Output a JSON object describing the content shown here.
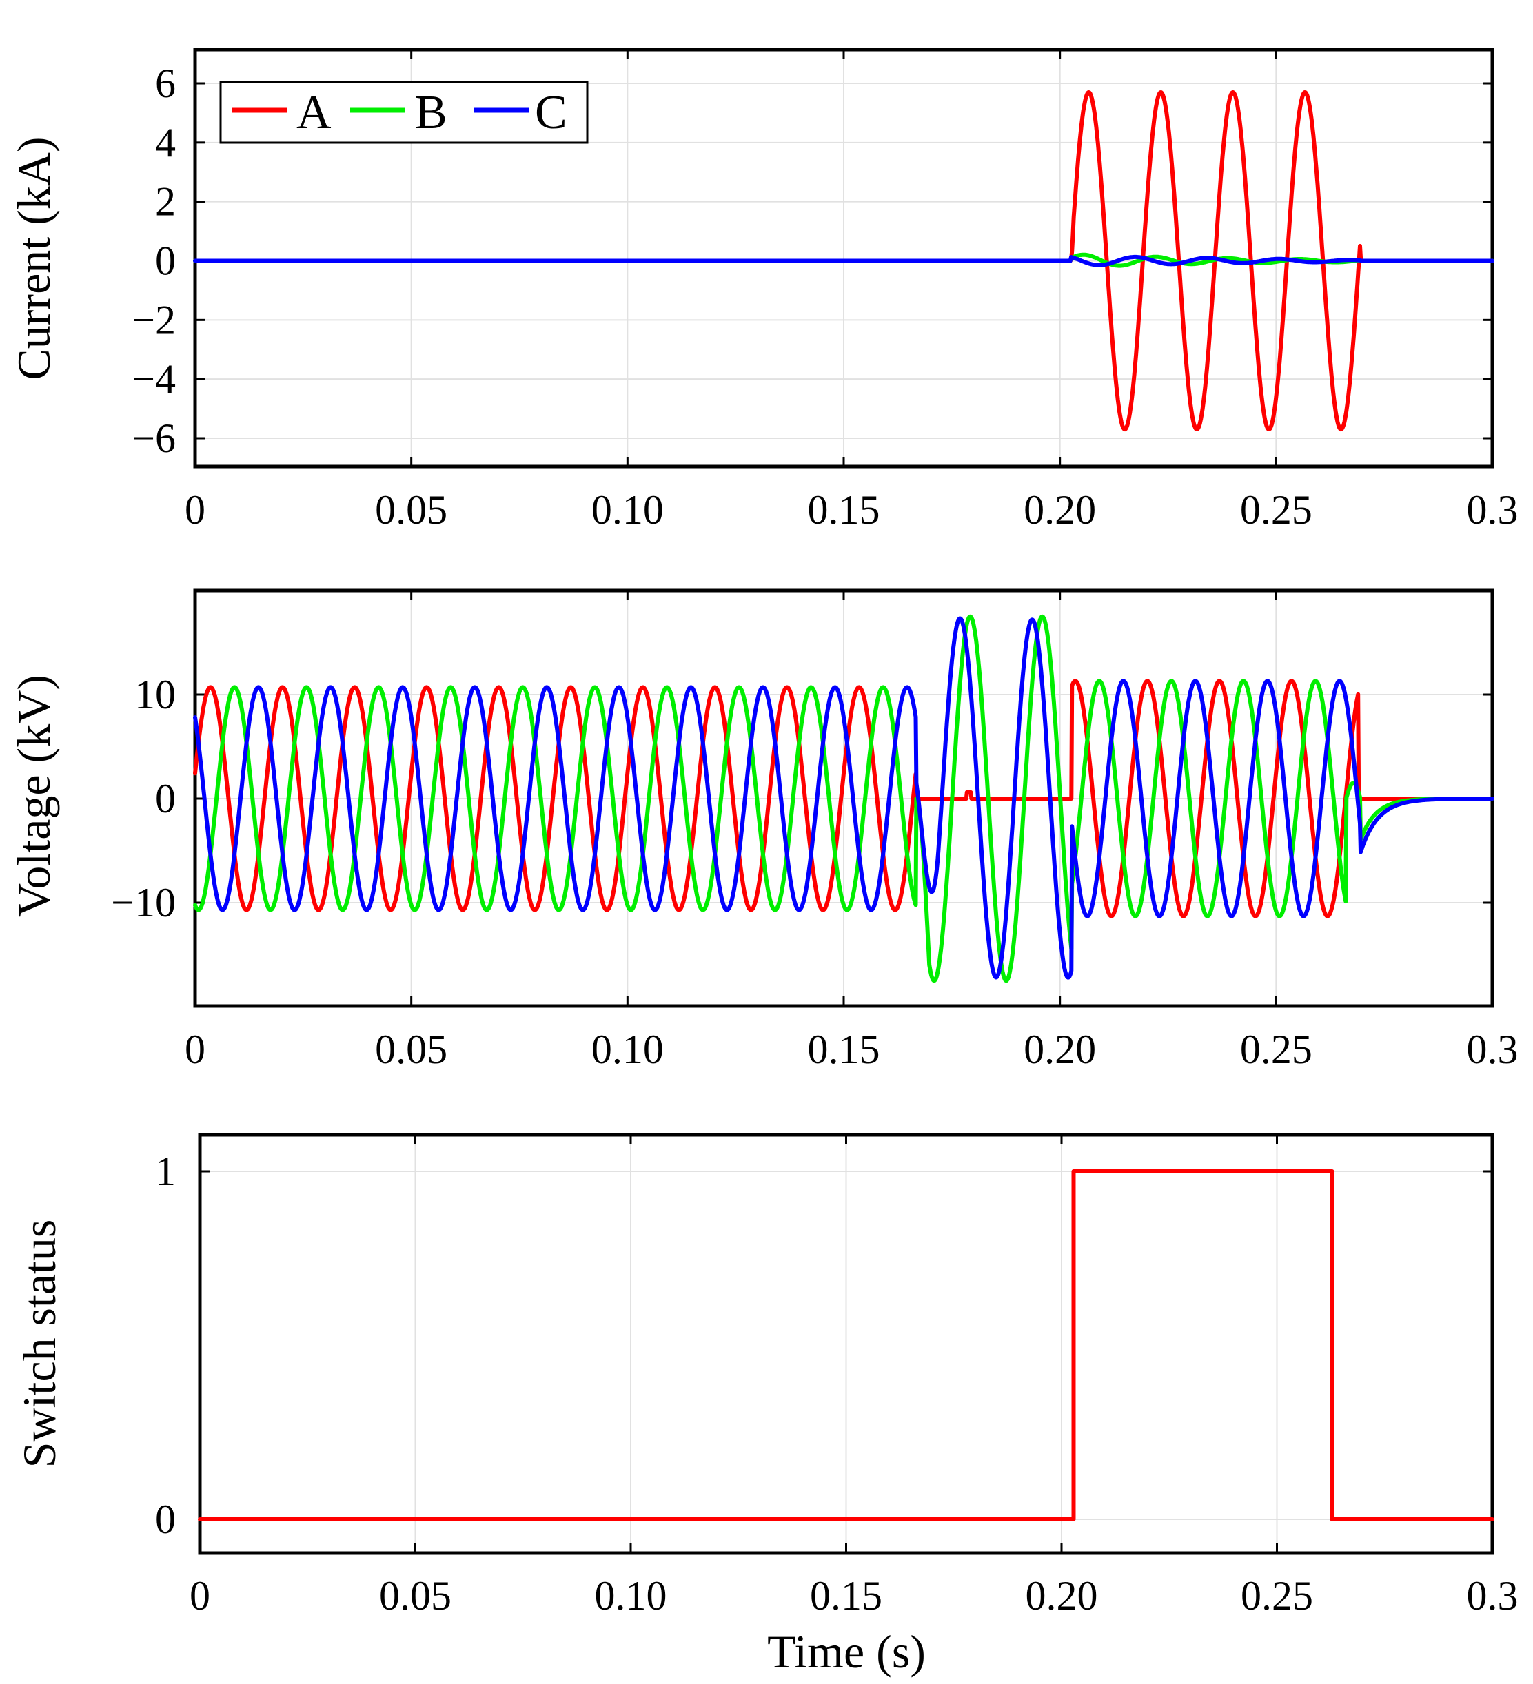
{
  "colors": {
    "A": "#ff0000",
    "B": "#00ee00",
    "C": "#0000ff"
  },
  "chart_data": [
    {
      "type": "line",
      "title": "",
      "xlabel": "",
      "ylabel": "Current (kA)",
      "xlim": [
        0,
        0.3
      ],
      "ylim": [
        -7,
        7
      ],
      "xticks": [
        0,
        0.05,
        0.1,
        0.15,
        0.2,
        0.25,
        0.3
      ],
      "xtick_labels": [
        "0",
        "0.05",
        "0.10",
        "0.15",
        "0.20",
        "0.25",
        "0.3"
      ],
      "yticks": [
        6,
        4,
        2,
        0,
        -2,
        -4,
        -6
      ],
      "ytick_labels": [
        "6",
        "4",
        "2",
        "0",
        "−2",
        "−4",
        "−6"
      ],
      "legend": {
        "position": "top-left",
        "entries": [
          "A",
          "B",
          "C"
        ]
      },
      "series": [
        {
          "name": "A",
          "color": "#ff0000",
          "description": "0 until t=0.203 s, then sinusoid ~5.7 kA peak at 60 Hz until t=0.27 s, then 0",
          "x": [
            0,
            0.2025,
            0.2071,
            0.2154,
            0.2236,
            0.2319,
            0.2401,
            0.2484,
            0.2567,
            0.2649,
            0.2695,
            0.3
          ],
          "y": [
            0,
            0,
            5.8,
            -5.5,
            5.5,
            -5.7,
            5.6,
            -5.7,
            5.6,
            -5.7,
            0,
            0
          ]
        },
        {
          "name": "B",
          "color": "#00ee00",
          "description": "small oscillation (~0.25 kA) during fault",
          "x": [
            0,
            0.2025,
            0.2071,
            0.2154,
            0.2236,
            0.2319,
            0.2401,
            0.2484,
            0.2567,
            0.2649,
            0.2695,
            0.3
          ],
          "y": [
            0,
            0,
            0.25,
            -0.22,
            0.2,
            -0.15,
            0.12,
            -0.1,
            0.08,
            -0.06,
            0,
            0
          ]
        },
        {
          "name": "C",
          "color": "#0000ff",
          "description": "small oscillation (~0.2 kA) during fault",
          "x": [
            0,
            0.2025,
            0.2071,
            0.2154,
            0.2236,
            0.2319,
            0.2401,
            0.2484,
            0.2567,
            0.2649,
            0.2695,
            0.3
          ],
          "y": [
            0,
            0,
            0.15,
            -0.12,
            0.18,
            -0.15,
            0.12,
            -0.1,
            0.12,
            -0.06,
            0,
            0
          ]
        }
      ]
    },
    {
      "type": "line",
      "title": "",
      "xlabel": "",
      "ylabel": "Voltage (kV)",
      "xlim": [
        0,
        0.3
      ],
      "ylim": [
        -20,
        20
      ],
      "xticks": [
        0,
        0.05,
        0.1,
        0.15,
        0.2,
        0.25,
        0.3
      ],
      "xtick_labels": [
        "0",
        "0.05",
        "0.10",
        "0.15",
        "0.20",
        "0.25",
        "0.3"
      ],
      "yticks": [
        10,
        0,
        -10
      ],
      "ytick_labels": [
        "10",
        "0",
        "−10"
      ],
      "series": [
        {
          "name": "A",
          "color": "#ff0000",
          "description": "three-phase 60 Hz ~10.7 kV peak until 0.167 s; ~0 during 0.167-0.203 s; ~11.3 kV peak 0.203-0.27 s; 0 after"
        },
        {
          "name": "B",
          "color": "#00ee00",
          "description": "~10.7 kV until 0.167 s; overvoltage ~18 kV during 0.167-0.203 s; ~11.3 kV 0.203-0.266 s; decays to 0 after 0.27 s"
        },
        {
          "name": "C",
          "color": "#0000ff",
          "description": "~10.7 kV until 0.167 s; overvoltage ~17.5 kV during 0.167-0.203 s; ~11.3 kV 0.203-0.27 s; decays to 0 after 0.27 s"
        }
      ]
    },
    {
      "type": "line",
      "title": "",
      "xlabel": "Time (s)",
      "ylabel": "Switch status",
      "xlim": [
        0,
        0.3
      ],
      "ylim": [
        -0.1,
        1.1
      ],
      "xticks": [
        0,
        0.05,
        0.1,
        0.15,
        0.2,
        0.25,
        0.3
      ],
      "xtick_labels": [
        "0",
        "0.05",
        "0.10",
        "0.15",
        "0.20",
        "0.25",
        "0.3"
      ],
      "yticks": [
        1,
        0
      ],
      "ytick_labels": [
        "1",
        "0"
      ],
      "series": [
        {
          "name": "Switch",
          "color": "#ff0000",
          "x": [
            0,
            0.2028,
            0.2028,
            0.2628,
            0.2628,
            0.3
          ],
          "y": [
            0,
            0,
            1,
            1,
            0,
            0
          ]
        }
      ]
    }
  ]
}
